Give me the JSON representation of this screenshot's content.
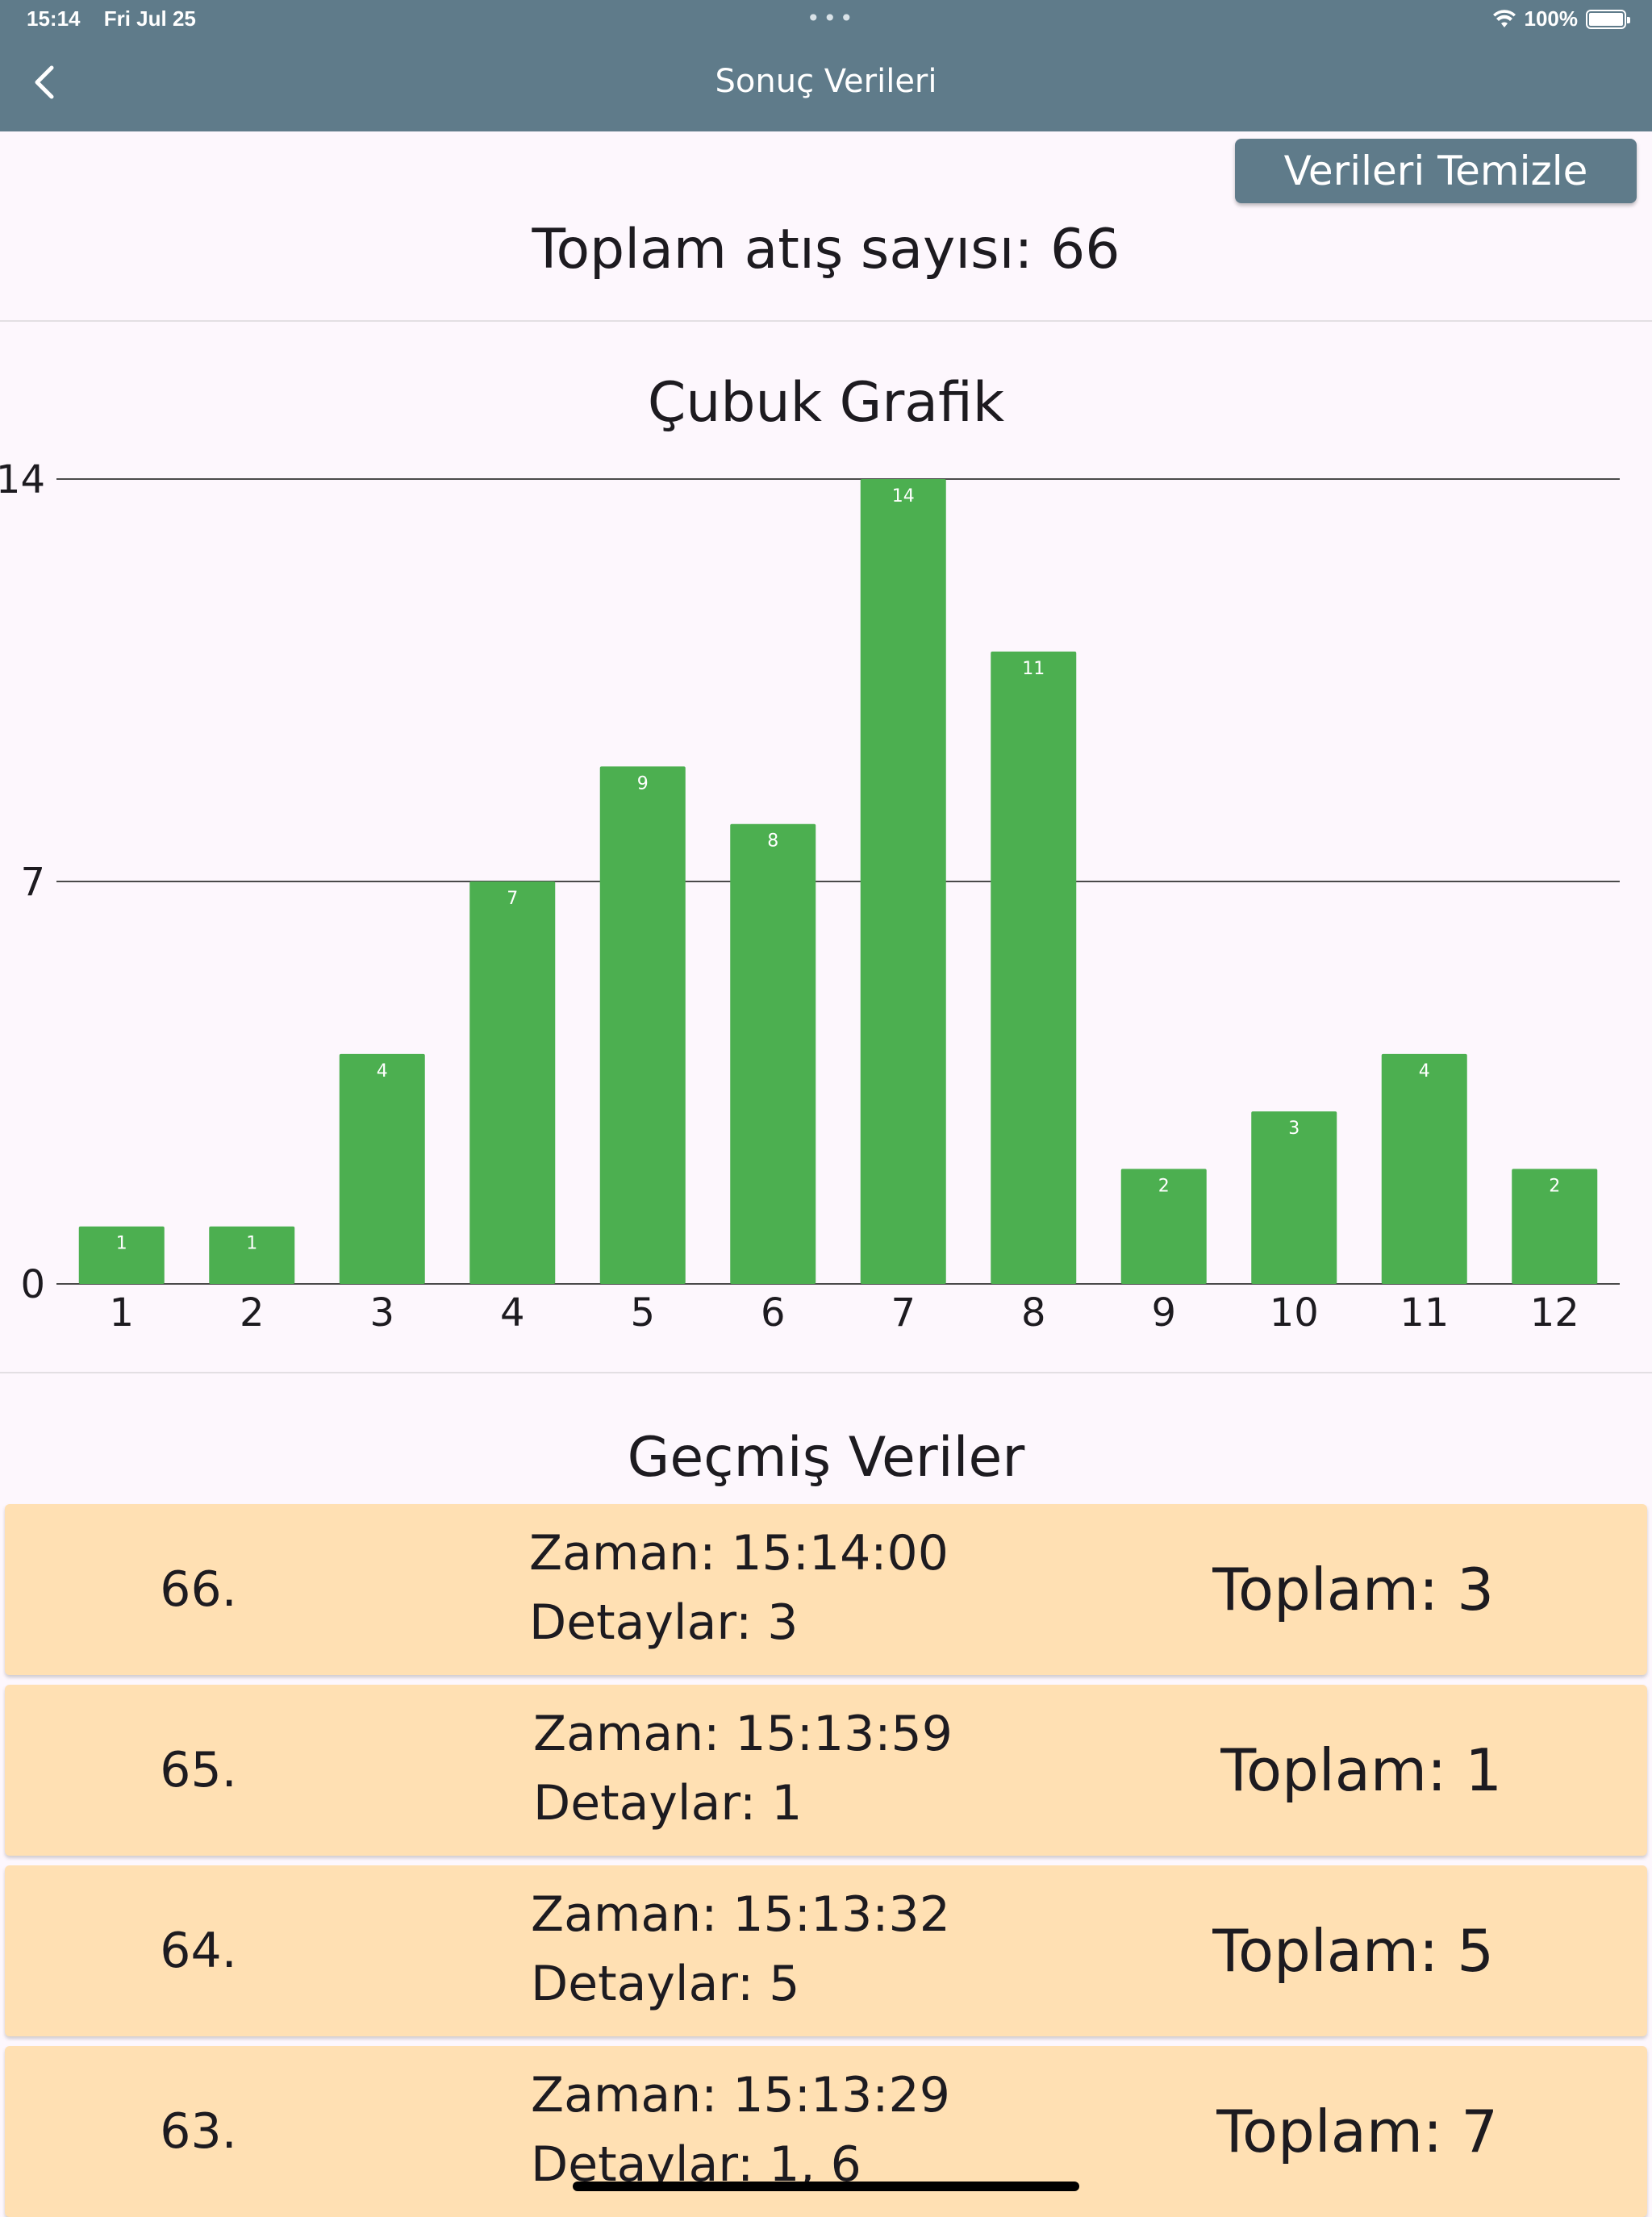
{
  "status_bar": {
    "time": "15:14",
    "date": "Fri Jul 25",
    "dots": "•••",
    "battery_percent": "100%"
  },
  "appbar": {
    "title": "Sonuç Verileri",
    "back_icon": "chevron-left-icon"
  },
  "actions": {
    "clear_label": "Verileri Temizle"
  },
  "summary": {
    "total_shots": "Toplam atış sayısı: 66"
  },
  "chart_title": "Çubuk Grafik",
  "chart_data": {
    "type": "bar",
    "title": "Çubuk Grafik",
    "categories": [
      "1",
      "2",
      "3",
      "4",
      "5",
      "6",
      "7",
      "8",
      "9",
      "10",
      "11",
      "12"
    ],
    "values": [
      1,
      1,
      4,
      7,
      9,
      8,
      14,
      11,
      2,
      3,
      4,
      2
    ],
    "ylim": [
      0,
      14
    ],
    "yticks": [
      "0",
      "7",
      "14"
    ],
    "grid": true,
    "bar_color": "#4caf50",
    "xlabel": "",
    "ylabel": ""
  },
  "history": {
    "title": "Geçmiş Veriler",
    "rows": [
      {
        "index": "66.",
        "time": "Zaman: 15:14:00",
        "detail": "Detaylar: 3",
        "total": "Toplam: 3"
      },
      {
        "index": "65.",
        "time": "Zaman: 15:13:59",
        "detail": "Detaylar: 1",
        "total": "Toplam: 1"
      },
      {
        "index": "64.",
        "time": "Zaman: 15:13:32",
        "detail": "Detaylar: 5",
        "total": "Toplam: 5"
      },
      {
        "index": "63.",
        "time": "Zaman: 15:13:29",
        "detail": "Detaylar: 1, 6",
        "total": "Toplam: 7"
      }
    ]
  },
  "colors": {
    "appbar": "#5f7b8a",
    "row_background": "#ffe0b3",
    "page_background": "#fdf7fd"
  }
}
